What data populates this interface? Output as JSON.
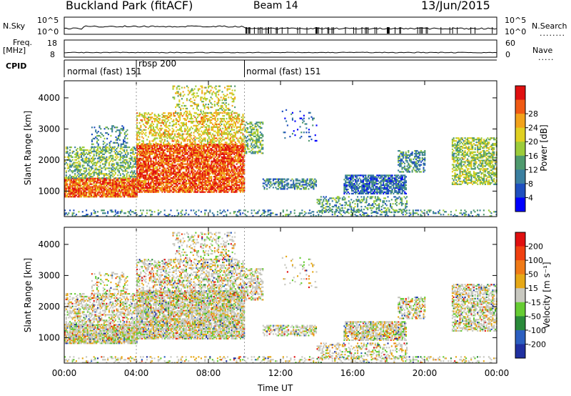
{
  "header": {
    "station": "Buckland Park (fitACF)",
    "beam": "Beam 14",
    "date": "13/Jun/2015"
  },
  "strip_labels": {
    "nsky": "N.Sky",
    "nsearch": "N.Search",
    "freq_line1": "Freq.",
    "freq_line2": "[MHz]",
    "nave": "Nave",
    "cpid": "CPID",
    "nsky_ticks": [
      "10^5",
      "10^0"
    ],
    "nsearch_ticks": [
      "10^5",
      "10^0"
    ],
    "freq_ticks": [
      "18",
      "8"
    ],
    "nave_ticks": [
      "60",
      "0"
    ]
  },
  "cpid_segments": [
    {
      "label": "normal (fast) 151",
      "start_hour": 0,
      "end_hour": 4
    },
    {
      "label": "rbsp 200",
      "start_hour": 4,
      "end_hour": 10
    },
    {
      "label": "normal (fast) 151",
      "start_hour": 10,
      "end_hour": 24
    }
  ],
  "chart_data": [
    {
      "type": "heatmap",
      "quantity": "power",
      "ylabel": "Slant Range [km]",
      "xlabel": "Time UT",
      "xlim": [
        0,
        24
      ],
      "ylim": [
        180,
        4550
      ],
      "y_ticks": [
        1000,
        2000,
        3000,
        4000
      ],
      "x_ticks": [
        "00:00",
        "04:00",
        "08:00",
        "12:00",
        "16:00",
        "20:00",
        "00:00"
      ],
      "colorbar": {
        "label": "Power [dB]",
        "ticks": [
          4,
          8,
          12,
          16,
          20,
          24,
          28
        ],
        "range": [
          0,
          32
        ],
        "colors": [
          "#0000ff",
          "#1f4fbf",
          "#3b7fa0",
          "#4f9a6e",
          "#9ccc3a",
          "#e0d022",
          "#f2a21b",
          "#f05a14",
          "#e01010"
        ]
      }
    },
    {
      "type": "heatmap",
      "quantity": "velocity",
      "ylabel": "Slant Range [km]",
      "xlabel": "Time UT",
      "xlim": [
        0,
        24
      ],
      "ylim": [
        180,
        4550
      ],
      "y_ticks": [
        1000,
        2000,
        3000,
        4000
      ],
      "x_ticks": [
        "00:00",
        "04:00",
        "08:00",
        "12:00",
        "16:00",
        "20:00",
        "00:00"
      ],
      "colorbar": {
        "label": "Velocity [m s⁻¹]",
        "ticks": [
          "200",
          "100",
          "50",
          "15",
          "-15",
          "-50",
          "-100",
          "-200"
        ],
        "colors": [
          "#2030a0",
          "#2c5fc0",
          "#2a8a3a",
          "#66cc33",
          "#c8c8c0",
          "#e6a817",
          "#f07a17",
          "#f04010",
          "#e01010"
        ]
      }
    }
  ],
  "time_axis_label": "Time UT"
}
